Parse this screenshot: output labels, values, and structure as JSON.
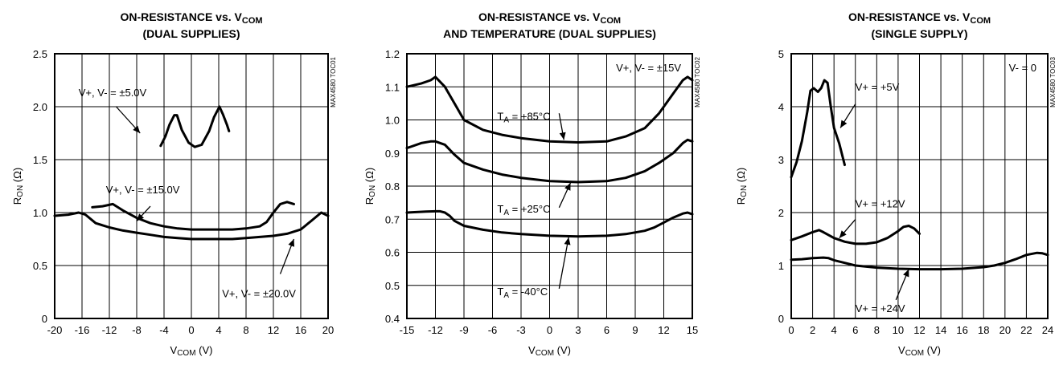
{
  "chart_data": [
    {
      "type": "line",
      "title": [
        "ON-RESISTANCE vs. V",
        "COM",
        "(DUAL SUPPLIES)"
      ],
      "ylabel": [
        "R",
        "ON",
        " (Ω)"
      ],
      "xlabel": [
        "V",
        "COM",
        " (V)"
      ],
      "code": "MAX4580 TOC01",
      "xlim": [
        -20,
        20
      ],
      "ylim": [
        0,
        2.5
      ],
      "xticks": [
        -20,
        -16,
        -12,
        -8,
        -4,
        0,
        4,
        8,
        12,
        16,
        20
      ],
      "xtick_labels": [
        "-20",
        "-16",
        "-12",
        "-8",
        "-4",
        "0",
        "4",
        "8",
        "12",
        "16",
        "20"
      ],
      "yticks": [
        0,
        0.5,
        1.0,
        1.5,
        2.0,
        2.5
      ],
      "ytick_labels": [
        "0",
        "0.5",
        "1.0",
        "1.5",
        "2.0",
        "2.5"
      ],
      "grid": true,
      "series": [
        {
          "name": "V+, V- = ±5.0V",
          "x": [
            -4.5,
            -3.8,
            -3.2,
            -2.5,
            -2.1,
            -1.4,
            -0.4,
            0.5,
            1.5,
            2.6,
            3.3,
            4.1,
            4.6,
            5.2,
            5.5
          ],
          "y": [
            1.63,
            1.72,
            1.83,
            1.92,
            1.92,
            1.78,
            1.66,
            1.62,
            1.64,
            1.77,
            1.9,
            2.0,
            1.93,
            1.83,
            1.77
          ]
        },
        {
          "name": "V+, V- = ±15.0V",
          "x": [
            -14.5,
            -13,
            -11.5,
            -10,
            -8,
            -6,
            -4,
            -2,
            0,
            2,
            4,
            6,
            8,
            10,
            11,
            12,
            13,
            14,
            15
          ],
          "y": [
            1.05,
            1.06,
            1.08,
            1.02,
            0.95,
            0.9,
            0.87,
            0.85,
            0.84,
            0.84,
            0.84,
            0.84,
            0.85,
            0.87,
            0.91,
            1.0,
            1.08,
            1.1,
            1.08
          ]
        },
        {
          "name": "V+, V- = ±20.0V",
          "x": [
            -20,
            -18,
            -16.5,
            -15.5,
            -14,
            -12,
            -10,
            -8,
            -6,
            -4,
            -2,
            0,
            2,
            4,
            6,
            8,
            10,
            12,
            14,
            16,
            17.5,
            19,
            20
          ],
          "y": [
            0.97,
            0.98,
            1.0,
            0.98,
            0.9,
            0.86,
            0.83,
            0.81,
            0.79,
            0.77,
            0.76,
            0.75,
            0.75,
            0.75,
            0.75,
            0.76,
            0.77,
            0.78,
            0.8,
            0.84,
            0.92,
            1.0,
            0.97
          ]
        }
      ],
      "annotations": [
        {
          "text": [
            "V+, V- = ±5.0V"
          ],
          "x": -16.5,
          "y": 2.1
        },
        {
          "text": [
            "V+, V- = ±15.0V"
          ],
          "x": -12.5,
          "y": 1.18
        },
        {
          "text": [
            "V+, V- = ±20.0V"
          ],
          "x": 4.5,
          "y": 0.2
        }
      ]
    },
    {
      "type": "line",
      "title": [
        "ON-RESISTANCE vs. V",
        "COM",
        "AND TEMPERATURE (DUAL SUPPLIES)"
      ],
      "ylabel": [
        "R",
        "ON",
        " (Ω)"
      ],
      "xlabel": [
        "V",
        "COM",
        " (V)"
      ],
      "code": "MAX4580 TOC02",
      "supply_label": "V+, V- = ±15V",
      "xlim": [
        -15,
        15
      ],
      "ylim": [
        0.4,
        1.2
      ],
      "xticks": [
        -15,
        -12,
        -9,
        -6,
        -3,
        0,
        3,
        6,
        9,
        12,
        15
      ],
      "xtick_labels": [
        "-15",
        "-12",
        "-9",
        "-6",
        "-3",
        "0",
        "3",
        "6",
        "9",
        "12",
        "15"
      ],
      "yticks": [
        0.4,
        0.5,
        0.6,
        0.7,
        0.8,
        0.9,
        1.0,
        1.1,
        1.2
      ],
      "ytick_labels": [
        "0.4",
        "0.5",
        "0.6",
        "0.7",
        "0.8",
        "0.9",
        "1.0",
        "1.1",
        "1.2"
      ],
      "grid": true,
      "series": [
        {
          "name": "TA = +85°C",
          "x": [
            -15,
            -13.5,
            -12.5,
            -12,
            -11,
            -10,
            -9,
            -7,
            -5,
            -3,
            0,
            3,
            6,
            8,
            10,
            11.5,
            13,
            14,
            14.5,
            15
          ],
          "y": [
            1.1,
            1.11,
            1.12,
            1.13,
            1.1,
            1.05,
            1.0,
            0.97,
            0.955,
            0.945,
            0.935,
            0.932,
            0.935,
            0.95,
            0.975,
            1.02,
            1.08,
            1.12,
            1.13,
            1.12
          ]
        },
        {
          "name": "TA = +25°C",
          "x": [
            -15,
            -13.5,
            -12.5,
            -12,
            -11,
            -10,
            -9,
            -7,
            -5,
            -3,
            0,
            3,
            6,
            8,
            10,
            11.5,
            13,
            14,
            14.5,
            15
          ],
          "y": [
            0.915,
            0.93,
            0.935,
            0.935,
            0.925,
            0.895,
            0.87,
            0.85,
            0.835,
            0.825,
            0.815,
            0.812,
            0.815,
            0.825,
            0.845,
            0.87,
            0.9,
            0.93,
            0.94,
            0.935
          ]
        },
        {
          "name": "TA = -40°C",
          "x": [
            -15,
            -13,
            -12,
            -11.5,
            -11,
            -10.5,
            -10,
            -9,
            -7,
            -5,
            -3,
            0,
            3,
            6,
            8,
            10,
            11,
            12,
            13,
            14,
            14.5,
            15
          ],
          "y": [
            0.72,
            0.723,
            0.724,
            0.724,
            0.72,
            0.71,
            0.695,
            0.68,
            0.668,
            0.66,
            0.655,
            0.65,
            0.648,
            0.65,
            0.655,
            0.665,
            0.675,
            0.69,
            0.705,
            0.717,
            0.72,
            0.715
          ]
        }
      ],
      "annotations": [
        {
          "text": [
            "T",
            "A",
            " = +85°C"
          ],
          "x": -5.5,
          "y": 1.0
        },
        {
          "text": [
            "T",
            "A",
            " = +25°C"
          ],
          "x": -5.5,
          "y": 0.72
        },
        {
          "text": [
            "T",
            "A",
            " = -40°C"
          ],
          "x": -5.5,
          "y": 0.47
        }
      ]
    },
    {
      "type": "line",
      "title": [
        "ON-RESISTANCE vs. V",
        "COM",
        "(SINGLE SUPPLY)"
      ],
      "ylabel": [
        "R",
        "ON",
        " (Ω)"
      ],
      "xlabel": [
        "V",
        "COM",
        " (V)"
      ],
      "code": "MAX4580 TOC03",
      "supply_label": "V- = 0",
      "xlim": [
        0,
        24
      ],
      "ylim": [
        0,
        5
      ],
      "xticks": [
        0,
        2,
        4,
        6,
        8,
        10,
        12,
        14,
        16,
        18,
        20,
        22,
        24
      ],
      "xtick_labels": [
        "0",
        "2",
        "4",
        "6",
        "8",
        "10",
        "12",
        "14",
        "16",
        "18",
        "20",
        "22",
        "24"
      ],
      "yticks": [
        0,
        1,
        2,
        3,
        4,
        5
      ],
      "ytick_labels": [
        "0",
        "1",
        "2",
        "3",
        "4",
        "5"
      ],
      "grid": true,
      "series": [
        {
          "name": "V+ = +5V",
          "x": [
            0,
            0.5,
            1,
            1.5,
            1.8,
            2.1,
            2.5,
            2.8,
            3.1,
            3.4,
            3.7,
            4.0,
            4.5,
            5.0
          ],
          "y": [
            2.67,
            2.95,
            3.35,
            3.9,
            4.3,
            4.35,
            4.28,
            4.35,
            4.5,
            4.45,
            4.0,
            3.6,
            3.3,
            2.9
          ]
        },
        {
          "name": "V+ = +12V",
          "x": [
            0,
            1,
            2,
            2.6,
            3,
            4,
            5,
            6,
            7,
            8,
            9,
            10,
            10.5,
            11,
            11.5,
            12
          ],
          "y": [
            1.48,
            1.55,
            1.63,
            1.67,
            1.63,
            1.52,
            1.45,
            1.41,
            1.41,
            1.44,
            1.52,
            1.65,
            1.73,
            1.75,
            1.7,
            1.6
          ]
        },
        {
          "name": "V+ = +24V",
          "x": [
            0,
            1,
            2,
            3,
            3.5,
            4,
            5,
            6,
            8,
            10,
            12,
            14,
            16,
            18,
            19,
            20,
            21,
            22,
            23,
            23.5,
            24
          ],
          "y": [
            1.11,
            1.12,
            1.14,
            1.15,
            1.14,
            1.1,
            1.05,
            1.0,
            0.96,
            0.94,
            0.93,
            0.93,
            0.94,
            0.97,
            1.0,
            1.05,
            1.12,
            1.2,
            1.24,
            1.23,
            1.2
          ]
        }
      ],
      "annotations": [
        {
          "text": [
            "V+ = +5V"
          ],
          "x": 6.0,
          "y": 4.3
        },
        {
          "text": [
            "V+ = +12V"
          ],
          "x": 6.0,
          "y": 2.1
        },
        {
          "text": [
            "V+ = +24V"
          ],
          "x": 6.0,
          "y": 0.12
        }
      ]
    }
  ]
}
